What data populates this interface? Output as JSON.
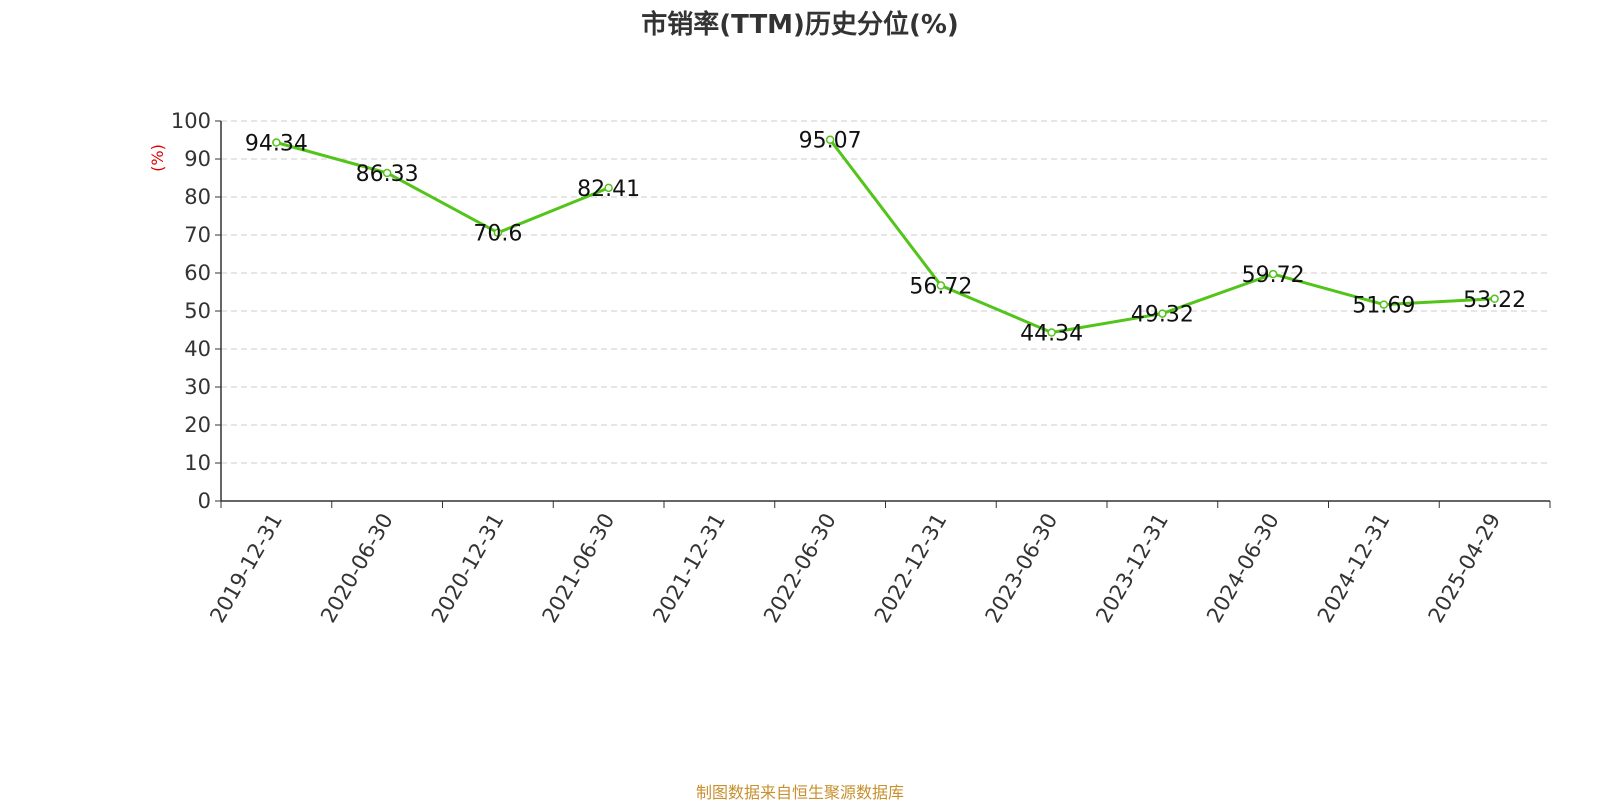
{
  "chart_data": {
    "type": "line",
    "title": "市销率(TTM)历史分位(%)",
    "ylabel": "(%)",
    "xlabel": "",
    "ylim": [
      0,
      100
    ],
    "yticks": [
      0,
      10,
      20,
      30,
      40,
      50,
      60,
      70,
      80,
      90,
      100
    ],
    "grid": true,
    "x": [
      "2019-12-31",
      "2020-06-30",
      "2020-12-31",
      "2021-06-30",
      "2021-12-31",
      "2022-06-30",
      "2022-12-31",
      "2023-06-30",
      "2023-12-31",
      "2024-06-30",
      "2024-12-31",
      "2025-04-29"
    ],
    "series": [
      {
        "values": [
          94.34,
          86.33,
          70.6,
          82.41,
          null,
          95.07,
          56.72,
          44.34,
          49.32,
          59.72,
          51.69,
          53.22
        ],
        "color": "#52c41a"
      }
    ]
  },
  "source": "制图数据来自恒生聚源数据库",
  "colors": {
    "line": "#52c41a",
    "axis": "#333333",
    "grid": "#cccccc",
    "unit": "#e00000",
    "source": "#c8902e"
  }
}
